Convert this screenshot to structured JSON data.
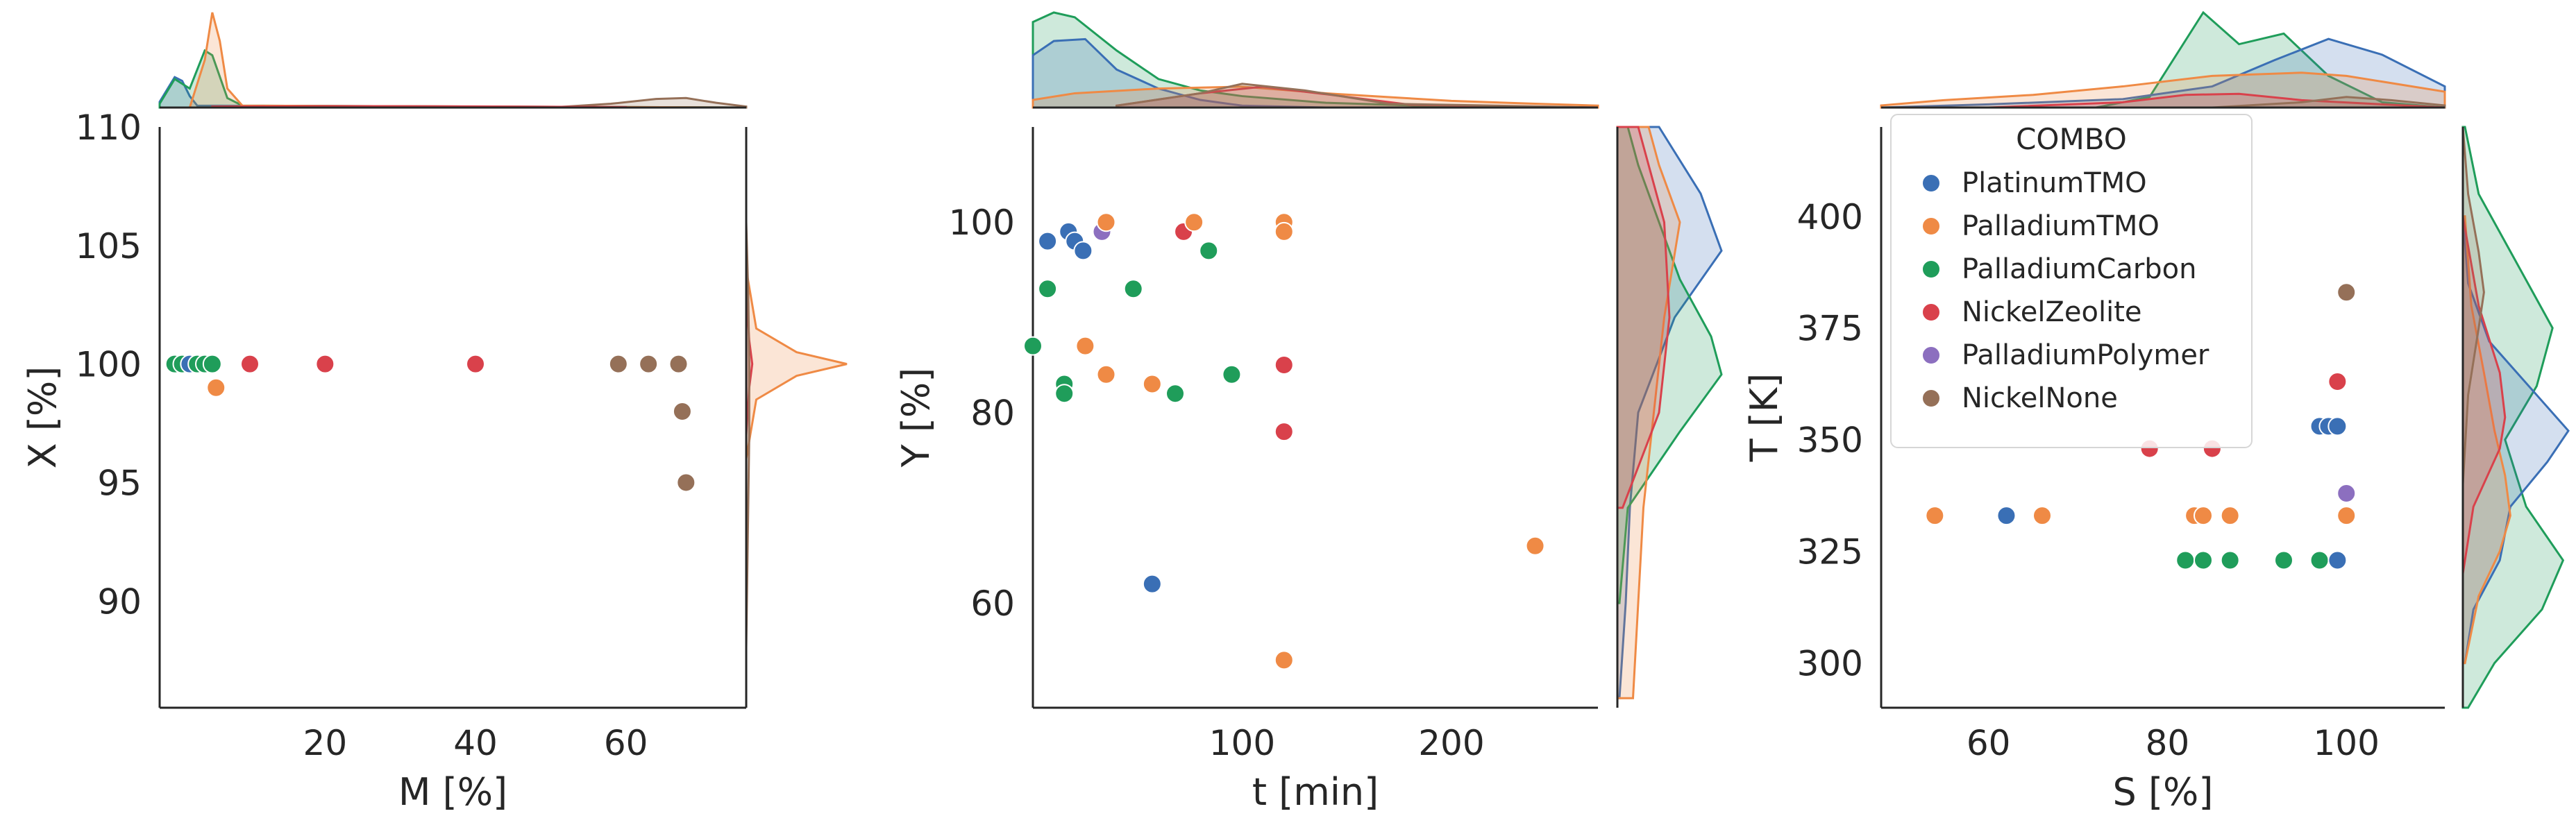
{
  "chart_data": [
    {
      "type": "scatter",
      "xlabel": "M [%]",
      "ylabel": "X [%]",
      "xlim": [
        -2,
        76
      ],
      "ylim": [
        85.5,
        110
      ],
      "xticks": [
        "20",
        "40",
        "60"
      ],
      "xtick_values": [
        20,
        40,
        60
      ],
      "yticks": [
        "110",
        "105",
        "100",
        "95",
        "90"
      ],
      "ytick_values": [
        110,
        105,
        100,
        95,
        90
      ],
      "marginal_x": [
        {
          "series": "PlatinumTMO",
          "x": [
            -2,
            0,
            1,
            2,
            3,
            76
          ],
          "density": [
            0.06,
            0.32,
            0.28,
            0.12,
            0.02,
            0
          ]
        },
        {
          "series": "PalladiumCarbon",
          "x": [
            -2,
            0,
            2,
            4,
            5,
            7,
            9,
            76
          ],
          "density": [
            0.04,
            0.3,
            0.2,
            0.6,
            0.55,
            0.1,
            0.02,
            0
          ]
        },
        {
          "series": "PalladiumTMO",
          "x": [
            2,
            4,
            5,
            6,
            7,
            9,
            76
          ],
          "density": [
            0,
            0.5,
            1.0,
            0.7,
            0.2,
            0.02,
            0
          ]
        },
        {
          "series": "NickelNone",
          "x": [
            50,
            58,
            64,
            68,
            72,
            76
          ],
          "density": [
            0,
            0.04,
            0.09,
            0.1,
            0.05,
            0.01
          ]
        },
        {
          "series": "NickelZeolite",
          "x": [
            5,
            20,
            40,
            60
          ],
          "density": [
            0.01,
            0.015,
            0.012,
            0.005
          ]
        }
      ],
      "marginal_y": [
        {
          "series": "PalladiumTMO",
          "y": [
            96,
            98.5,
            99.5,
            100,
            100.5,
            101.5,
            104
          ],
          "density": [
            0,
            0.1,
            0.5,
            1.0,
            0.5,
            0.1,
            0
          ]
        },
        {
          "series": "NickelZeolite",
          "y": [
            97,
            99,
            100,
            101,
            103
          ],
          "density": [
            0,
            0.03,
            0.06,
            0.03,
            0
          ]
        },
        {
          "series": "NickelNone",
          "y": [
            88,
            94,
            97,
            100,
            103,
            106
          ],
          "density": [
            0,
            0.02,
            0.03,
            0.03,
            0.02,
            0
          ]
        }
      ],
      "points": [
        {
          "series": "PalladiumCarbon",
          "x": 0,
          "y": 100
        },
        {
          "series": "PalladiumCarbon",
          "x": 1,
          "y": 100
        },
        {
          "series": "PlatinumTMO",
          "x": 2,
          "y": 100
        },
        {
          "series": "PalladiumCarbon",
          "x": 3,
          "y": 100
        },
        {
          "series": "PalladiumCarbon",
          "x": 4,
          "y": 100
        },
        {
          "series": "PalladiumCarbon",
          "x": 5,
          "y": 100
        },
        {
          "series": "PalladiumTMO",
          "x": 5.5,
          "y": 99
        },
        {
          "series": "NickelZeolite",
          "x": 10,
          "y": 100
        },
        {
          "series": "NickelZeolite",
          "x": 20,
          "y": 100
        },
        {
          "series": "NickelZeolite",
          "x": 40,
          "y": 100
        },
        {
          "series": "NickelNone",
          "x": 59,
          "y": 100
        },
        {
          "series": "NickelNone",
          "x": 63,
          "y": 100
        },
        {
          "series": "NickelNone",
          "x": 67,
          "y": 100
        },
        {
          "series": "NickelNone",
          "x": 67.5,
          "y": 98
        },
        {
          "series": "NickelNone",
          "x": 68,
          "y": 95
        }
      ]
    },
    {
      "type": "scatter",
      "xlabel": "t [min]",
      "ylabel": "Y [%]",
      "xlim": [
        0,
        270
      ],
      "ylim": [
        49,
        110
      ],
      "xticks": [
        "100",
        "200"
      ],
      "xtick_values": [
        100,
        200
      ],
      "yticks": [
        "100",
        "80",
        "60"
      ],
      "ytick_values": [
        100,
        80,
        60
      ],
      "marginal_x": [
        {
          "series": "PalladiumCarbon",
          "x": [
            0,
            10,
            20,
            40,
            60,
            80,
            100,
            140,
            200,
            270
          ],
          "density": [
            0.9,
            1.0,
            0.95,
            0.6,
            0.3,
            0.18,
            0.12,
            0.05,
            0.01,
            0
          ]
        },
        {
          "series": "PlatinumTMO",
          "x": [
            0,
            10,
            25,
            40,
            60,
            80,
            100,
            140,
            270
          ],
          "density": [
            0.55,
            0.7,
            0.72,
            0.4,
            0.2,
            0.08,
            0.02,
            0,
            0
          ]
        },
        {
          "series": "PalladiumTMO",
          "x": [
            0,
            20,
            60,
            100,
            140,
            200,
            240,
            270
          ],
          "density": [
            0.08,
            0.15,
            0.2,
            0.22,
            0.15,
            0.07,
            0.04,
            0.02
          ]
        },
        {
          "series": "NickelZeolite",
          "x": [
            40,
            80,
            110,
            140,
            180,
            270
          ],
          "density": [
            0.02,
            0.15,
            0.22,
            0.14,
            0.03,
            0
          ]
        },
        {
          "series": "NickelNone",
          "x": [
            40,
            80,
            100,
            130,
            170,
            270
          ],
          "density": [
            0.02,
            0.15,
            0.25,
            0.18,
            0.04,
            0
          ]
        }
      ],
      "marginal_y": [
        {
          "series": "PlatinumTMO",
          "y": [
            50,
            60,
            70,
            80,
            90,
            97,
            103,
            110
          ],
          "density": [
            0.02,
            0.08,
            0.12,
            0.2,
            0.55,
            1.0,
            0.8,
            0.4
          ]
        },
        {
          "series": "PalladiumCarbon",
          "y": [
            60,
            70,
            78,
            84,
            88,
            94,
            100,
            106,
            110
          ],
          "density": [
            0.02,
            0.1,
            0.6,
            1.0,
            0.9,
            0.6,
            0.4,
            0.2,
            0.1
          ]
        },
        {
          "series": "PalladiumTMO",
          "y": [
            50,
            60,
            70,
            80,
            90,
            100,
            106,
            110
          ],
          "density": [
            0.15,
            0.2,
            0.25,
            0.35,
            0.45,
            0.6,
            0.4,
            0.3
          ]
        },
        {
          "series": "NickelZeolite",
          "y": [
            70,
            80,
            90,
            100,
            110
          ],
          "density": [
            0.05,
            0.4,
            0.5,
            0.45,
            0.2
          ]
        }
      ],
      "points": [
        {
          "series": "PalladiumCarbon",
          "x": 0,
          "y": 87
        },
        {
          "series": "PlatinumTMO",
          "x": 7,
          "y": 98
        },
        {
          "series": "PalladiumCarbon",
          "x": 7,
          "y": 93
        },
        {
          "series": "PalladiumCarbon",
          "x": 15,
          "y": 83
        },
        {
          "series": "PalladiumCarbon",
          "x": 15,
          "y": 82
        },
        {
          "series": "PlatinumTMO",
          "x": 17,
          "y": 99
        },
        {
          "series": "PlatinumTMO",
          "x": 20,
          "y": 98
        },
        {
          "series": "PlatinumTMO",
          "x": 24,
          "y": 97
        },
        {
          "series": "PalladiumTMO",
          "x": 25,
          "y": 87
        },
        {
          "series": "PlatinumTMO",
          "x": 33,
          "y": 99
        },
        {
          "series": "PalladiumPolymer",
          "x": 33,
          "y": 99
        },
        {
          "series": "PalladiumTMO",
          "x": 35,
          "y": 100
        },
        {
          "series": "PalladiumTMO",
          "x": 35,
          "y": 84
        },
        {
          "series": "PalladiumCarbon",
          "x": 48,
          "y": 93
        },
        {
          "series": "PlatinumTMO",
          "x": 57,
          "y": 62
        },
        {
          "series": "PalladiumTMO",
          "x": 57,
          "y": 83
        },
        {
          "series": "PalladiumCarbon",
          "x": 68,
          "y": 82
        },
        {
          "series": "NickelZeolite",
          "x": 72,
          "y": 99
        },
        {
          "series": "PalladiumTMO",
          "x": 77,
          "y": 100
        },
        {
          "series": "PalladiumCarbon",
          "x": 84,
          "y": 97
        },
        {
          "series": "PalladiumCarbon",
          "x": 95,
          "y": 84
        },
        {
          "series": "PalladiumTMO",
          "x": 120,
          "y": 100
        },
        {
          "series": "PalladiumTMO",
          "x": 120,
          "y": 99
        },
        {
          "series": "NickelZeolite",
          "x": 120,
          "y": 85
        },
        {
          "series": "NickelZeolite",
          "x": 120,
          "y": 78
        },
        {
          "series": "PalladiumTMO",
          "x": 120,
          "y": 54
        },
        {
          "series": "PalladiumTMO",
          "x": 240,
          "y": 66
        }
      ]
    },
    {
      "type": "scatter",
      "xlabel": "S [%]",
      "ylabel": "T [K]",
      "xlim": [
        48,
        111
      ],
      "ylim": [
        290,
        420
      ],
      "xticks": [
        "60",
        "80",
        "100"
      ],
      "xtick_values": [
        60,
        80,
        100
      ],
      "yticks": [
        "400",
        "375",
        "350",
        "325",
        "300"
      ],
      "ytick_values": [
        400,
        375,
        350,
        325,
        300
      ],
      "legend": {
        "title": "COMBO",
        "position": "upper-left",
        "entries": [
          {
            "name": "PlatinumTMO",
            "color": "#4c72b0"
          },
          {
            "name": "PalladiumTMO",
            "color": "#dd8452"
          },
          {
            "name": "PalladiumCarbon",
            "color": "#55a868"
          },
          {
            "name": "NickelZeolite",
            "color": "#c44e52"
          },
          {
            "name": "PalladiumPolymer",
            "color": "#8172b3"
          },
          {
            "name": "NickelNone",
            "color": "#937860"
          }
        ]
      },
      "marginal_x": [
        {
          "series": "PalladiumCarbon",
          "x": [
            72,
            78,
            84,
            88,
            93,
            98,
            104,
            111
          ],
          "density": [
            0,
            0.1,
            0.9,
            0.6,
            0.7,
            0.3,
            0.05,
            0
          ]
        },
        {
          "series": "PlatinumTMO",
          "x": [
            48,
            60,
            75,
            85,
            92,
            98,
            104,
            111
          ],
          "density": [
            0,
            0.03,
            0.08,
            0.2,
            0.45,
            0.65,
            0.5,
            0.2
          ]
        },
        {
          "series": "PalladiumTMO",
          "x": [
            48,
            55,
            65,
            75,
            85,
            95,
            100,
            111
          ],
          "density": [
            0.02,
            0.07,
            0.12,
            0.2,
            0.3,
            0.33,
            0.3,
            0.15
          ]
        },
        {
          "series": "NickelZeolite",
          "x": [
            60,
            75,
            82,
            88,
            95,
            111
          ],
          "density": [
            0,
            0.05,
            0.12,
            0.13,
            0.07,
            0
          ]
        },
        {
          "series": "NickelNone",
          "x": [
            85,
            95,
            100,
            105,
            111
          ],
          "density": [
            0,
            0.05,
            0.1,
            0.07,
            0.02
          ]
        }
      ],
      "marginal_y": [
        {
          "series": "PalladiumCarbon",
          "y": [
            290,
            300,
            312,
            323,
            335,
            350,
            362,
            375,
            390,
            405,
            420
          ],
          "density": [
            0.05,
            0.3,
            0.75,
            0.95,
            0.6,
            0.4,
            0.7,
            0.85,
            0.5,
            0.15,
            0.02
          ]
        },
        {
          "series": "PlatinumTMO",
          "y": [
            300,
            312,
            323,
            335,
            345,
            352,
            360,
            372,
            385,
            400
          ],
          "density": [
            0.02,
            0.1,
            0.35,
            0.45,
            0.8,
            1.0,
            0.7,
            0.25,
            0.05,
            0
          ]
        },
        {
          "series": "PalladiumTMO",
          "y": [
            300,
            315,
            325,
            333,
            342,
            352,
            365,
            380,
            400
          ],
          "density": [
            0.02,
            0.15,
            0.35,
            0.45,
            0.4,
            0.3,
            0.2,
            0.08,
            0.02
          ]
        },
        {
          "series": "NickelZeolite",
          "y": [
            320,
            335,
            348,
            355,
            365,
            380,
            400
          ],
          "density": [
            0,
            0.1,
            0.35,
            0.4,
            0.35,
            0.15,
            0
          ]
        },
        {
          "series": "NickelNone",
          "y": [
            340,
            360,
            375,
            383,
            392,
            405,
            420
          ],
          "density": [
            0,
            0.05,
            0.15,
            0.2,
            0.15,
            0.05,
            0
          ]
        }
      ],
      "points": [
        {
          "series": "PalladiumTMO",
          "x": 54,
          "y": 333
        },
        {
          "series": "PlatinumTMO",
          "x": 62,
          "y": 333
        },
        {
          "series": "PalladiumTMO",
          "x": 66,
          "y": 333
        },
        {
          "series": "NickelZeolite",
          "x": 78,
          "y": 348
        },
        {
          "series": "PalladiumCarbon",
          "x": 82,
          "y": 323
        },
        {
          "series": "PalladiumTMO",
          "x": 83,
          "y": 333
        },
        {
          "series": "PalladiumTMO",
          "x": 84,
          "y": 333
        },
        {
          "series": "PalladiumCarbon",
          "x": 84,
          "y": 323
        },
        {
          "series": "NickelZeolite",
          "x": 85,
          "y": 348
        },
        {
          "series": "PalladiumTMO",
          "x": 87,
          "y": 333
        },
        {
          "series": "PalladiumCarbon",
          "x": 87,
          "y": 323
        },
        {
          "series": "PalladiumCarbon",
          "x": 93,
          "y": 323
        },
        {
          "series": "PalladiumCarbon",
          "x": 97,
          "y": 323
        },
        {
          "series": "PlatinumTMO",
          "x": 97,
          "y": 353
        },
        {
          "series": "PlatinumTMO",
          "x": 98,
          "y": 353
        },
        {
          "series": "PlatinumTMO",
          "x": 99,
          "y": 353
        },
        {
          "series": "PlatinumTMO",
          "x": 99,
          "y": 323
        },
        {
          "series": "NickelZeolite",
          "x": 99,
          "y": 363
        },
        {
          "series": "PalladiumTMO",
          "x": 100,
          "y": 333
        },
        {
          "series": "PalladiumPolymer",
          "x": 100,
          "y": 338
        },
        {
          "series": "NickelNone",
          "x": 100,
          "y": 383
        }
      ]
    }
  ]
}
